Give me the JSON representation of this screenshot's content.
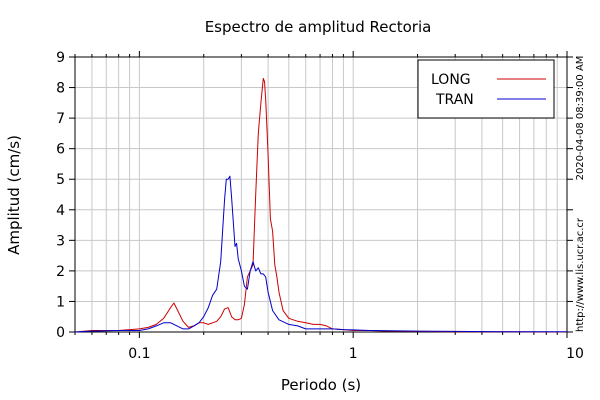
{
  "chart_data": {
    "type": "line",
    "title": "Espectro de amplitud Rectoria",
    "xlabel": "Periodo (s)",
    "ylabel": "Amplitud (cm/s)",
    "x_scale": "log",
    "xlim": [
      0.05,
      10
    ],
    "ylim": [
      0,
      9
    ],
    "x_tick_labels": [
      "0.1",
      "1",
      "10"
    ],
    "y_tick_labels": [
      "0",
      "1",
      "2",
      "3",
      "4",
      "5",
      "6",
      "7",
      "8",
      "9"
    ],
    "grid": true,
    "legend_position": "top-right",
    "side_labels": [
      "2020-04-08 08:39:00 AM",
      "http://www.lis.ucr.ac.cr"
    ],
    "series": [
      {
        "name": "LONG",
        "color": "#cc0000",
        "x": [
          0.05,
          0.06,
          0.08,
          0.1,
          0.11,
          0.12,
          0.13,
          0.14,
          0.145,
          0.15,
          0.16,
          0.17,
          0.18,
          0.19,
          0.2,
          0.21,
          0.22,
          0.23,
          0.24,
          0.25,
          0.26,
          0.27,
          0.28,
          0.29,
          0.3,
          0.31,
          0.32,
          0.33,
          0.34,
          0.35,
          0.36,
          0.37,
          0.38,
          0.385,
          0.39,
          0.4,
          0.41,
          0.42,
          0.43,
          0.44,
          0.45,
          0.47,
          0.5,
          0.55,
          0.6,
          0.65,
          0.7,
          0.75,
          0.8,
          0.9,
          1.0,
          1.2,
          1.5,
          2.0,
          3.0,
          5.0,
          10.0
        ],
        "y": [
          0.0,
          0.05,
          0.05,
          0.1,
          0.15,
          0.25,
          0.45,
          0.8,
          0.95,
          0.75,
          0.35,
          0.15,
          0.2,
          0.3,
          0.3,
          0.25,
          0.3,
          0.35,
          0.5,
          0.75,
          0.8,
          0.5,
          0.4,
          0.4,
          0.45,
          0.9,
          1.8,
          2.0,
          2.2,
          4.5,
          6.5,
          7.5,
          8.3,
          8.2,
          7.6,
          5.8,
          3.7,
          3.3,
          2.2,
          1.8,
          1.3,
          0.7,
          0.45,
          0.35,
          0.3,
          0.25,
          0.25,
          0.2,
          0.1,
          0.08,
          0.05,
          0.05,
          0.03,
          0.02,
          0.01,
          0.01,
          0.0
        ]
      },
      {
        "name": "TRAN",
        "color": "#0000cc",
        "x": [
          0.05,
          0.06,
          0.08,
          0.1,
          0.11,
          0.12,
          0.13,
          0.14,
          0.15,
          0.16,
          0.17,
          0.18,
          0.19,
          0.2,
          0.21,
          0.22,
          0.23,
          0.24,
          0.25,
          0.255,
          0.26,
          0.265,
          0.27,
          0.275,
          0.28,
          0.285,
          0.29,
          0.3,
          0.31,
          0.32,
          0.33,
          0.34,
          0.35,
          0.36,
          0.37,
          0.38,
          0.39,
          0.4,
          0.42,
          0.45,
          0.5,
          0.55,
          0.6,
          0.7,
          0.8,
          0.9,
          1.0,
          1.2,
          1.5,
          2.0,
          3.0,
          5.0,
          10.0
        ],
        "y": [
          0.0,
          0.03,
          0.05,
          0.05,
          0.1,
          0.2,
          0.3,
          0.3,
          0.2,
          0.1,
          0.1,
          0.2,
          0.3,
          0.5,
          0.8,
          1.2,
          1.4,
          2.3,
          4.3,
          5.0,
          5.0,
          5.1,
          4.4,
          3.6,
          2.8,
          2.9,
          2.4,
          2.0,
          1.5,
          1.4,
          2.0,
          2.3,
          2.0,
          2.1,
          1.9,
          1.9,
          1.8,
          1.3,
          0.7,
          0.4,
          0.25,
          0.2,
          0.1,
          0.1,
          0.1,
          0.08,
          0.07,
          0.05,
          0.04,
          0.03,
          0.02,
          0.01,
          0.01
        ]
      }
    ]
  }
}
